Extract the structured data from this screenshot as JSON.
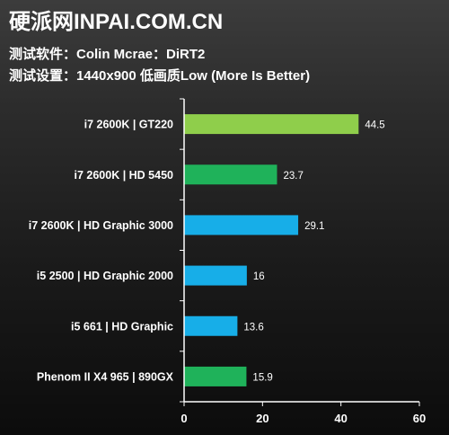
{
  "header": {
    "title": "硬派网INPAI.COM.CN",
    "software_line": "测试软件：Colin Mcrae：DiRT2",
    "settings_line": "测试设置：1440x900 低画质Low (More Is Better)"
  },
  "chart_data": {
    "type": "bar",
    "orientation": "horizontal",
    "categories": [
      "i7 2600K | GT220",
      "i7 2600K | HD 5450",
      "i7 2600K | HD Graphic 3000",
      "i5 2500 | HD Graphic 2000",
      "i5 661 | HD Graphic",
      "Phenom II X4 965 | 890GX"
    ],
    "values": [
      44.5,
      23.7,
      29.1,
      16,
      13.6,
      15.9
    ],
    "value_labels": [
      "44.5",
      "23.7",
      "29.1",
      "16",
      "13.6",
      "15.9"
    ],
    "bar_colors": [
      "#8fce4b",
      "#1fb25a",
      "#17aee8",
      "#17aee8",
      "#17aee8",
      "#1fb25a"
    ],
    "xlim": [
      0,
      60
    ],
    "xticks": [
      0,
      20,
      40,
      60
    ],
    "xtick_labels": [
      "0",
      "20",
      "40",
      "60"
    ],
    "grid": false
  }
}
